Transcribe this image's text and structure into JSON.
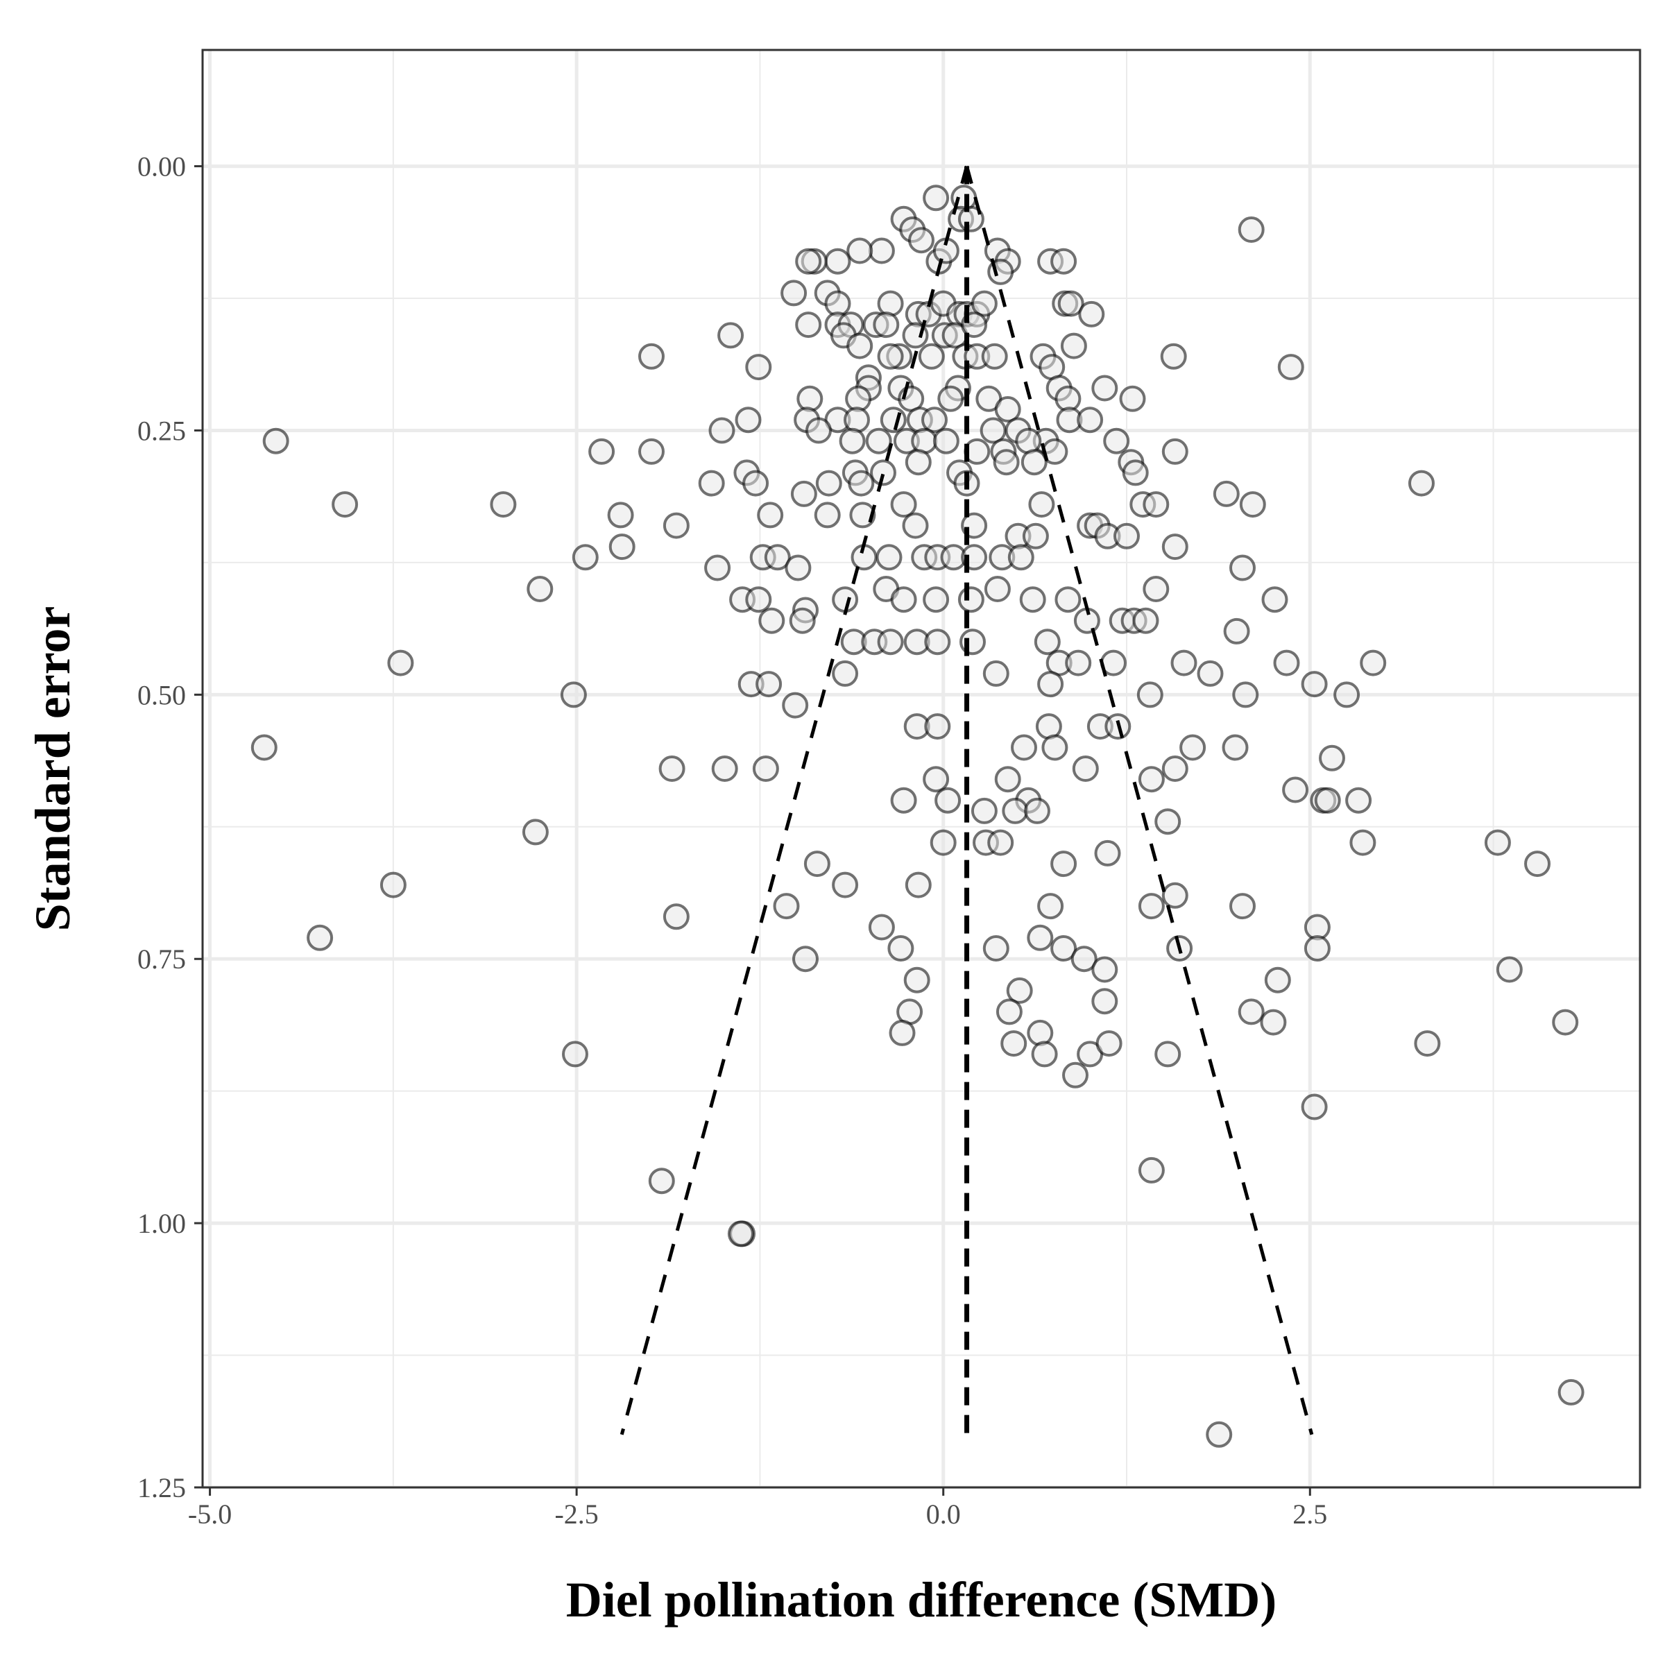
{
  "chart_data": {
    "type": "scatter",
    "title": "",
    "xlabel": "Diel pollination difference (SMD)",
    "ylabel": "Standard error",
    "xlim": [
      -5.05,
      4.75
    ],
    "ylim": [
      -0.11,
      1.25
    ],
    "y_reversed": true,
    "x_ticks": [
      -5.0,
      -2.5,
      0.0,
      2.5
    ],
    "x_tick_labels": [
      "-5.0",
      "-2.5",
      "0.0",
      "2.5"
    ],
    "y_ticks": [
      0.0,
      0.25,
      0.5,
      0.75,
      1.0,
      1.25
    ],
    "y_tick_labels": [
      "0.00",
      "0.25",
      "0.50",
      "0.75",
      "1.00",
      "1.25"
    ],
    "grid": true,
    "legend": "none",
    "summary_effect": 0.16,
    "funnel_max_se": 1.2,
    "colors": {
      "point_stroke": "#000000",
      "point_fill": "#e6e6e6",
      "grid": "#ebebeb",
      "funnel_line": "#000000",
      "panel_border": "#333333"
    },
    "series": [
      {
        "values": [
          [
            0.14,
            0.03
          ],
          [
            -0.05,
            0.03
          ],
          [
            0.12,
            0.05
          ],
          [
            0.19,
            0.05
          ],
          [
            -0.27,
            0.05
          ],
          [
            -0.21,
            0.06
          ],
          [
            -0.15,
            0.07
          ],
          [
            2.1,
            0.06
          ],
          [
            -0.42,
            0.08
          ],
          [
            -0.57,
            0.08
          ],
          [
            -0.72,
            0.09
          ],
          [
            -0.88,
            0.09
          ],
          [
            -0.92,
            0.09
          ],
          [
            -0.03,
            0.09
          ],
          [
            0.02,
            0.08
          ],
          [
            0.37,
            0.08
          ],
          [
            0.44,
            0.09
          ],
          [
            0.73,
            0.09
          ],
          [
            0.82,
            0.09
          ],
          [
            0.39,
            0.1
          ],
          [
            -1.02,
            0.12
          ],
          [
            -0.79,
            0.12
          ],
          [
            -0.72,
            0.13
          ],
          [
            -0.36,
            0.13
          ],
          [
            -0.17,
            0.14
          ],
          [
            -0.1,
            0.14
          ],
          [
            0.0,
            0.13
          ],
          [
            0.11,
            0.14
          ],
          [
            0.16,
            0.14
          ],
          [
            0.23,
            0.14
          ],
          [
            0.28,
            0.13
          ],
          [
            0.83,
            0.13
          ],
          [
            0.87,
            0.13
          ],
          [
            1.01,
            0.14
          ],
          [
            -0.92,
            0.15
          ],
          [
            -0.72,
            0.15
          ],
          [
            -0.63,
            0.15
          ],
          [
            -0.46,
            0.15
          ],
          [
            -0.39,
            0.15
          ],
          [
            -0.19,
            0.16
          ],
          [
            0.01,
            0.16
          ],
          [
            0.08,
            0.16
          ],
          [
            0.21,
            0.15
          ],
          [
            -1.45,
            0.16
          ],
          [
            -0.68,
            0.16
          ],
          [
            -0.57,
            0.17
          ],
          [
            -0.3,
            0.18
          ],
          [
            0.15,
            0.18
          ],
          [
            0.23,
            0.18
          ],
          [
            0.68,
            0.18
          ],
          [
            0.89,
            0.17
          ],
          [
            -1.99,
            0.18
          ],
          [
            -1.26,
            0.19
          ],
          [
            -0.51,
            0.2
          ],
          [
            -0.36,
            0.18
          ],
          [
            -0.08,
            0.18
          ],
          [
            0.35,
            0.18
          ],
          [
            0.74,
            0.19
          ],
          [
            1.57,
            0.18
          ],
          [
            2.37,
            0.19
          ],
          [
            -0.51,
            0.21
          ],
          [
            -0.29,
            0.21
          ],
          [
            0.1,
            0.21
          ],
          [
            0.79,
            0.21
          ],
          [
            1.1,
            0.21
          ],
          [
            -0.91,
            0.22
          ],
          [
            -0.58,
            0.22
          ],
          [
            -0.22,
            0.22
          ],
          [
            0.05,
            0.22
          ],
          [
            0.31,
            0.22
          ],
          [
            0.44,
            0.23
          ],
          [
            0.85,
            0.22
          ],
          [
            1.29,
            0.22
          ],
          [
            -1.33,
            0.24
          ],
          [
            -0.93,
            0.24
          ],
          [
            -0.72,
            0.24
          ],
          [
            -0.59,
            0.24
          ],
          [
            -0.34,
            0.24
          ],
          [
            -0.16,
            0.24
          ],
          [
            -0.06,
            0.24
          ],
          [
            0.34,
            0.25
          ],
          [
            0.51,
            0.25
          ],
          [
            0.7,
            0.26
          ],
          [
            0.86,
            0.24
          ],
          [
            1.0,
            0.24
          ],
          [
            -4.55,
            0.26
          ],
          [
            -2.33,
            0.27
          ],
          [
            -1.99,
            0.27
          ],
          [
            -1.51,
            0.25
          ],
          [
            -0.85,
            0.25
          ],
          [
            -0.62,
            0.26
          ],
          [
            -0.44,
            0.26
          ],
          [
            -0.25,
            0.26
          ],
          [
            -0.13,
            0.26
          ],
          [
            0.02,
            0.26
          ],
          [
            0.23,
            0.27
          ],
          [
            0.41,
            0.27
          ],
          [
            0.58,
            0.26
          ],
          [
            0.76,
            0.27
          ],
          [
            1.18,
            0.26
          ],
          [
            1.58,
            0.27
          ],
          [
            -1.34,
            0.29
          ],
          [
            -0.6,
            0.29
          ],
          [
            -0.41,
            0.29
          ],
          [
            -0.17,
            0.28
          ],
          [
            0.11,
            0.29
          ],
          [
            0.43,
            0.28
          ],
          [
            0.62,
            0.28
          ],
          [
            1.28,
            0.28
          ],
          [
            1.31,
            0.29
          ],
          [
            3.26,
            0.3
          ],
          [
            -4.08,
            0.32
          ],
          [
            -3.0,
            0.32
          ],
          [
            -1.58,
            0.3
          ],
          [
            -1.28,
            0.3
          ],
          [
            -0.95,
            0.31
          ],
          [
            -0.78,
            0.3
          ],
          [
            -0.56,
            0.3
          ],
          [
            -0.27,
            0.32
          ],
          [
            0.16,
            0.3
          ],
          [
            0.67,
            0.32
          ],
          [
            1.36,
            0.32
          ],
          [
            1.45,
            0.32
          ],
          [
            1.93,
            0.31
          ],
          [
            2.11,
            0.32
          ],
          [
            -2.2,
            0.33
          ],
          [
            -1.82,
            0.34
          ],
          [
            -1.18,
            0.33
          ],
          [
            -0.79,
            0.33
          ],
          [
            -0.55,
            0.33
          ],
          [
            -0.19,
            0.34
          ],
          [
            0.21,
            0.34
          ],
          [
            0.51,
            0.35
          ],
          [
            0.63,
            0.35
          ],
          [
            1.0,
            0.34
          ],
          [
            1.05,
            0.34
          ],
          [
            1.12,
            0.35
          ],
          [
            1.25,
            0.35
          ],
          [
            -2.19,
            0.36
          ],
          [
            -2.44,
            0.37
          ],
          [
            -1.54,
            0.38
          ],
          [
            -1.23,
            0.37
          ],
          [
            -1.13,
            0.37
          ],
          [
            -0.99,
            0.38
          ],
          [
            -0.54,
            0.37
          ],
          [
            -0.37,
            0.37
          ],
          [
            -0.13,
            0.37
          ],
          [
            -0.04,
            0.37
          ],
          [
            0.07,
            0.37
          ],
          [
            0.21,
            0.37
          ],
          [
            0.4,
            0.37
          ],
          [
            0.53,
            0.37
          ],
          [
            1.58,
            0.36
          ],
          [
            2.04,
            0.38
          ],
          [
            -2.75,
            0.4
          ],
          [
            -1.37,
            0.41
          ],
          [
            -1.26,
            0.41
          ],
          [
            -0.94,
            0.42
          ],
          [
            -0.67,
            0.41
          ],
          [
            -0.39,
            0.4
          ],
          [
            -0.27,
            0.41
          ],
          [
            -0.05,
            0.41
          ],
          [
            0.19,
            0.41
          ],
          [
            0.37,
            0.4
          ],
          [
            0.61,
            0.41
          ],
          [
            0.85,
            0.41
          ],
          [
            1.45,
            0.4
          ],
          [
            2.26,
            0.41
          ],
          [
            -1.17,
            0.43
          ],
          [
            -0.96,
            0.43
          ],
          [
            -0.61,
            0.45
          ],
          [
            -0.47,
            0.45
          ],
          [
            -0.36,
            0.45
          ],
          [
            -0.18,
            0.45
          ],
          [
            -0.04,
            0.45
          ],
          [
            0.2,
            0.45
          ],
          [
            0.71,
            0.45
          ],
          [
            0.98,
            0.43
          ],
          [
            1.22,
            0.43
          ],
          [
            1.3,
            0.43
          ],
          [
            1.38,
            0.43
          ],
          [
            2.0,
            0.44
          ],
          [
            -3.7,
            0.47
          ],
          [
            -0.67,
            0.48
          ],
          [
            0.36,
            0.48
          ],
          [
            0.79,
            0.47
          ],
          [
            0.92,
            0.47
          ],
          [
            1.16,
            0.47
          ],
          [
            1.64,
            0.47
          ],
          [
            2.34,
            0.47
          ],
          [
            2.93,
            0.47
          ],
          [
            -2.52,
            0.5
          ],
          [
            -1.31,
            0.49
          ],
          [
            -1.19,
            0.49
          ],
          [
            -1.01,
            0.51
          ],
          [
            0.73,
            0.49
          ],
          [
            1.41,
            0.5
          ],
          [
            1.82,
            0.48
          ],
          [
            2.06,
            0.5
          ],
          [
            2.53,
            0.49
          ],
          [
            2.75,
            0.5
          ],
          [
            -4.63,
            0.55
          ],
          [
            -0.18,
            0.53
          ],
          [
            -0.04,
            0.53
          ],
          [
            0.72,
            0.53
          ],
          [
            1.07,
            0.53
          ],
          [
            1.19,
            0.53
          ],
          [
            0.55,
            0.55
          ],
          [
            0.76,
            0.55
          ],
          [
            1.7,
            0.55
          ],
          [
            1.99,
            0.55
          ],
          [
            -1.85,
            0.57
          ],
          [
            -1.49,
            0.57
          ],
          [
            -1.21,
            0.57
          ],
          [
            0.97,
            0.57
          ],
          [
            1.58,
            0.57
          ],
          [
            2.65,
            0.56
          ],
          [
            -0.05,
            0.58
          ],
          [
            -0.27,
            0.6
          ],
          [
            0.03,
            0.6
          ],
          [
            0.44,
            0.58
          ],
          [
            0.58,
            0.6
          ],
          [
            1.42,
            0.58
          ],
          [
            2.4,
            0.59
          ],
          [
            2.59,
            0.6
          ],
          [
            2.62,
            0.6
          ],
          [
            2.83,
            0.6
          ],
          [
            -2.78,
            0.63
          ],
          [
            0.28,
            0.61
          ],
          [
            0.49,
            0.61
          ],
          [
            0.64,
            0.61
          ],
          [
            0.0,
            0.64
          ],
          [
            0.29,
            0.64
          ],
          [
            0.39,
            0.64
          ],
          [
            1.53,
            0.62
          ],
          [
            2.86,
            0.64
          ],
          [
            3.78,
            0.64
          ],
          [
            4.05,
            0.66
          ],
          [
            -0.86,
            0.66
          ],
          [
            0.82,
            0.66
          ],
          [
            1.12,
            0.65
          ],
          [
            -3.75,
            0.68
          ],
          [
            -1.82,
            0.71
          ],
          [
            -1.07,
            0.7
          ],
          [
            -0.67,
            0.68
          ],
          [
            -0.17,
            0.68
          ],
          [
            0.73,
            0.7
          ],
          [
            1.42,
            0.7
          ],
          [
            1.58,
            0.69
          ],
          [
            2.04,
            0.7
          ],
          [
            -4.25,
            0.73
          ],
          [
            -0.42,
            0.72
          ],
          [
            -0.29,
            0.74
          ],
          [
            0.36,
            0.74
          ],
          [
            0.66,
            0.73
          ],
          [
            0.82,
            0.74
          ],
          [
            0.96,
            0.75
          ],
          [
            1.61,
            0.74
          ],
          [
            2.55,
            0.72
          ],
          [
            2.55,
            0.74
          ],
          [
            -0.94,
            0.75
          ],
          [
            -0.18,
            0.77
          ],
          [
            1.1,
            0.76
          ],
          [
            2.28,
            0.77
          ],
          [
            3.86,
            0.76
          ],
          [
            0.52,
            0.78
          ],
          [
            -0.23,
            0.8
          ],
          [
            0.45,
            0.8
          ],
          [
            1.1,
            0.79
          ],
          [
            2.1,
            0.8
          ],
          [
            2.25,
            0.81
          ],
          [
            4.24,
            0.81
          ],
          [
            -2.51,
            0.84
          ],
          [
            -0.28,
            0.82
          ],
          [
            0.48,
            0.83
          ],
          [
            0.66,
            0.82
          ],
          [
            0.69,
            0.84
          ],
          [
            1.0,
            0.84
          ],
          [
            1.13,
            0.83
          ],
          [
            1.53,
            0.84
          ],
          [
            3.3,
            0.83
          ],
          [
            0.9,
            0.86
          ],
          [
            2.53,
            0.89
          ],
          [
            -1.92,
            0.96
          ],
          [
            1.42,
            0.95
          ],
          [
            -1.37,
            1.01
          ],
          [
            -1.38,
            1.01
          ],
          [
            4.28,
            1.16
          ],
          [
            1.88,
            1.2
          ]
        ]
      }
    ]
  }
}
